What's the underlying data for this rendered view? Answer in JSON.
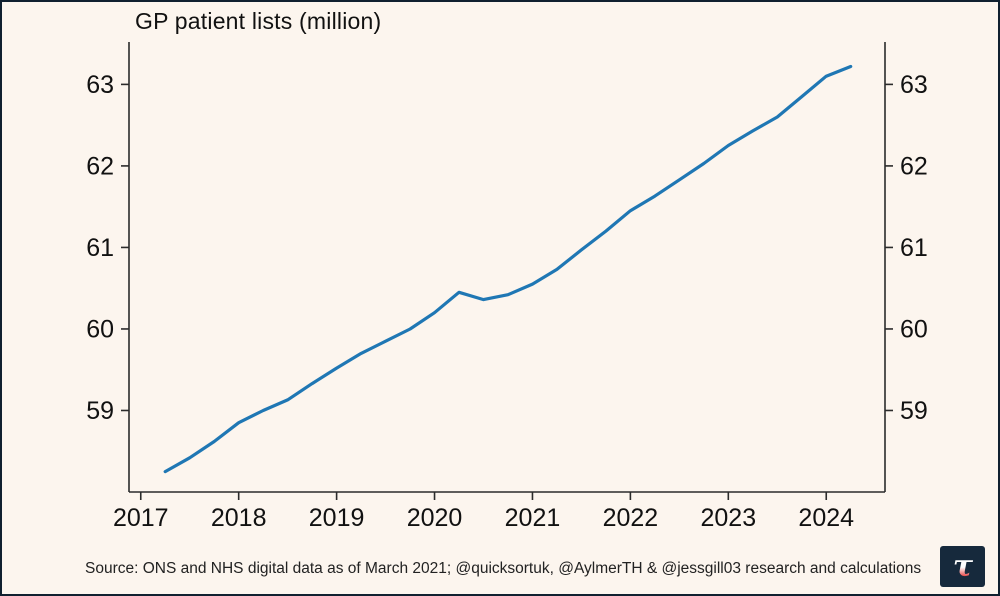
{
  "chart_data": {
    "type": "line",
    "title": "GP patient lists (million)",
    "xlabel": "",
    "ylabel": "",
    "grid": false,
    "legend": "none",
    "xlim": [
      2016.88,
      2024.6
    ],
    "ylim": [
      58.0,
      63.52
    ],
    "xticks": [
      2017,
      2018,
      2019,
      2020,
      2021,
      2022,
      2023,
      2024
    ],
    "yticks": [
      59,
      60,
      61,
      62,
      63
    ],
    "yticks_right": [
      59,
      60,
      61,
      62,
      63
    ],
    "series": [
      {
        "name": "GP patient lists (million)",
        "color": "#1f77b4",
        "x": [
          2017.25,
          2017.5,
          2017.75,
          2018.0,
          2018.25,
          2018.5,
          2018.75,
          2019.0,
          2019.25,
          2019.5,
          2019.75,
          2020.0,
          2020.25,
          2020.5,
          2020.75,
          2021.0,
          2021.25,
          2021.5,
          2021.75,
          2022.0,
          2022.25,
          2022.5,
          2022.75,
          2023.0,
          2023.25,
          2023.5,
          2023.75,
          2024.0,
          2024.25
        ],
        "y": [
          58.25,
          58.42,
          58.62,
          58.85,
          59.0,
          59.13,
          59.33,
          59.52,
          59.7,
          59.85,
          60.0,
          60.2,
          60.45,
          60.36,
          60.42,
          60.55,
          60.73,
          60.97,
          61.2,
          61.45,
          61.63,
          61.83,
          62.03,
          62.25,
          62.43,
          62.6,
          62.85,
          63.1,
          63.22
        ]
      }
    ]
  },
  "source_note": "Source: ONS and NHS digital data as of March 2021; @quicksortuk, @AylmerTH & @jessgill03 research and calculations",
  "logo": {
    "glyph": "τ",
    "bg_color": "#16293c",
    "glyph_top_color": "#ffffff",
    "glyph_bottom_color": "#e22a2a"
  },
  "colors": {
    "background": "#fcf5ee",
    "frame_border": "#10202f",
    "line": "#1f77b4",
    "axis": "#2b2b2b"
  }
}
